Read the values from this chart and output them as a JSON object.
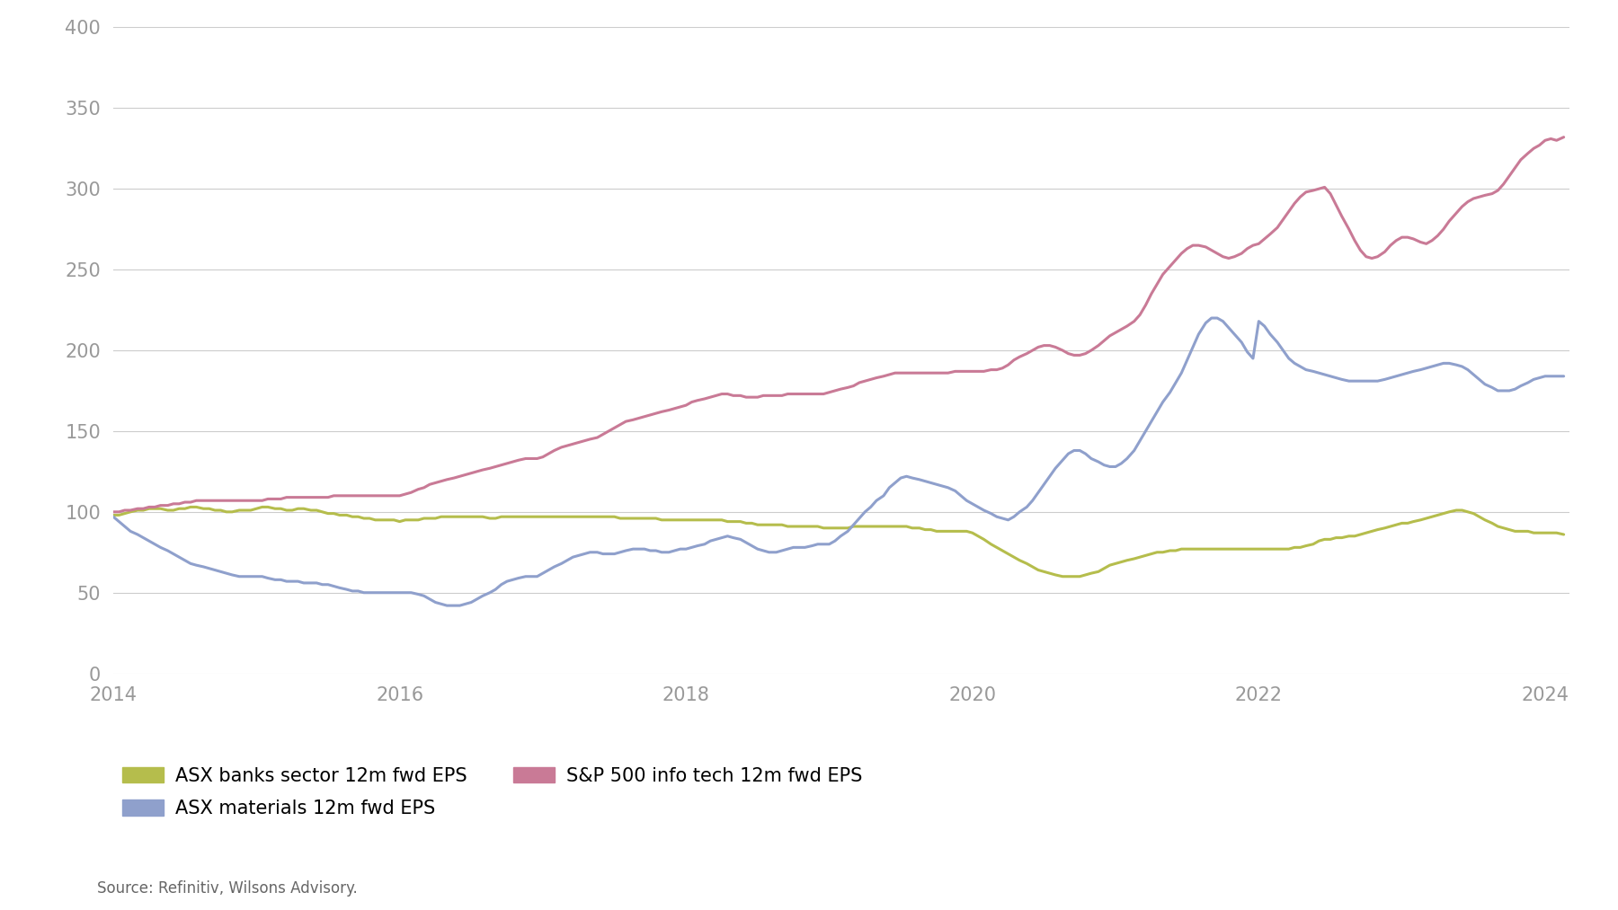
{
  "title": "",
  "source_text": "Source: Refinitiv, Wilsons Advisory.",
  "xlim": [
    2014.0,
    2024.17
  ],
  "ylim": [
    0,
    400
  ],
  "yticks": [
    0,
    50,
    100,
    150,
    200,
    250,
    300,
    350,
    400
  ],
  "xticks": [
    2014,
    2016,
    2018,
    2020,
    2022,
    2024
  ],
  "background_color": "#ffffff",
  "grid_color": "#cccccc",
  "legend_items": [
    {
      "label": "ASX banks sector 12m fwd EPS",
      "color": "#b5bd4c"
    },
    {
      "label": "ASX materials 12m fwd EPS",
      "color": "#8fa0cc"
    },
    {
      "label": "S&P 500 info tech 12m fwd EPS",
      "color": "#c97a96"
    }
  ],
  "banks_x": [
    2014.0,
    2014.04,
    2014.08,
    2014.12,
    2014.17,
    2014.21,
    2014.25,
    2014.29,
    2014.33,
    2014.38,
    2014.42,
    2014.46,
    2014.5,
    2014.54,
    2014.58,
    2014.63,
    2014.67,
    2014.71,
    2014.75,
    2014.79,
    2014.83,
    2014.88,
    2014.92,
    2014.96,
    2015.0,
    2015.04,
    2015.08,
    2015.13,
    2015.17,
    2015.21,
    2015.25,
    2015.29,
    2015.33,
    2015.38,
    2015.42,
    2015.46,
    2015.5,
    2015.54,
    2015.58,
    2015.63,
    2015.67,
    2015.71,
    2015.75,
    2015.79,
    2015.83,
    2015.88,
    2015.92,
    2015.96,
    2016.0,
    2016.04,
    2016.08,
    2016.13,
    2016.17,
    2016.21,
    2016.25,
    2016.29,
    2016.33,
    2016.38,
    2016.42,
    2016.46,
    2016.5,
    2016.54,
    2016.58,
    2016.63,
    2016.67,
    2016.71,
    2016.75,
    2016.79,
    2016.83,
    2016.88,
    2016.92,
    2016.96,
    2017.0,
    2017.04,
    2017.08,
    2017.13,
    2017.17,
    2017.21,
    2017.25,
    2017.29,
    2017.33,
    2017.38,
    2017.42,
    2017.46,
    2017.5,
    2017.54,
    2017.58,
    2017.63,
    2017.67,
    2017.71,
    2017.75,
    2017.79,
    2017.83,
    2017.88,
    2017.92,
    2017.96,
    2018.0,
    2018.04,
    2018.08,
    2018.13,
    2018.17,
    2018.21,
    2018.25,
    2018.29,
    2018.33,
    2018.38,
    2018.42,
    2018.46,
    2018.5,
    2018.54,
    2018.58,
    2018.63,
    2018.67,
    2018.71,
    2018.75,
    2018.79,
    2018.83,
    2018.88,
    2018.92,
    2018.96,
    2019.0,
    2019.04,
    2019.08,
    2019.13,
    2019.17,
    2019.21,
    2019.25,
    2019.29,
    2019.33,
    2019.38,
    2019.42,
    2019.46,
    2019.5,
    2019.54,
    2019.58,
    2019.63,
    2019.67,
    2019.71,
    2019.75,
    2019.79,
    2019.83,
    2019.88,
    2019.92,
    2019.96,
    2020.0,
    2020.04,
    2020.08,
    2020.13,
    2020.17,
    2020.21,
    2020.25,
    2020.29,
    2020.33,
    2020.38,
    2020.42,
    2020.46,
    2020.5,
    2020.54,
    2020.58,
    2020.63,
    2020.67,
    2020.71,
    2020.75,
    2020.79,
    2020.83,
    2020.88,
    2020.92,
    2020.96,
    2021.0,
    2021.04,
    2021.08,
    2021.13,
    2021.17,
    2021.21,
    2021.25,
    2021.29,
    2021.33,
    2021.38,
    2021.42,
    2021.46,
    2021.5,
    2021.54,
    2021.58,
    2021.63,
    2021.67,
    2021.71,
    2021.75,
    2021.79,
    2021.83,
    2021.88,
    2021.92,
    2021.96,
    2022.0,
    2022.04,
    2022.08,
    2022.13,
    2022.17,
    2022.21,
    2022.25,
    2022.29,
    2022.33,
    2022.38,
    2022.42,
    2022.46,
    2022.5,
    2022.54,
    2022.58,
    2022.63,
    2022.67,
    2022.71,
    2022.75,
    2022.79,
    2022.83,
    2022.88,
    2022.92,
    2022.96,
    2023.0,
    2023.04,
    2023.08,
    2023.13,
    2023.17,
    2023.21,
    2023.25,
    2023.29,
    2023.33,
    2023.38,
    2023.42,
    2023.46,
    2023.5,
    2023.54,
    2023.58,
    2023.63,
    2023.67,
    2023.71,
    2023.75,
    2023.79,
    2023.83,
    2023.88,
    2023.92,
    2023.96,
    2024.0,
    2024.04,
    2024.08,
    2024.13
  ],
  "banks_y": [
    98,
    98,
    99,
    100,
    101,
    101,
    102,
    102,
    102,
    101,
    101,
    102,
    102,
    103,
    103,
    102,
    102,
    101,
    101,
    100,
    100,
    101,
    101,
    101,
    102,
    103,
    103,
    102,
    102,
    101,
    101,
    102,
    102,
    101,
    101,
    100,
    99,
    99,
    98,
    98,
    97,
    97,
    96,
    96,
    95,
    95,
    95,
    95,
    94,
    95,
    95,
    95,
    96,
    96,
    96,
    97,
    97,
    97,
    97,
    97,
    97,
    97,
    97,
    96,
    96,
    97,
    97,
    97,
    97,
    97,
    97,
    97,
    97,
    97,
    97,
    97,
    97,
    97,
    97,
    97,
    97,
    97,
    97,
    97,
    97,
    96,
    96,
    96,
    96,
    96,
    96,
    96,
    95,
    95,
    95,
    95,
    95,
    95,
    95,
    95,
    95,
    95,
    95,
    94,
    94,
    94,
    93,
    93,
    92,
    92,
    92,
    92,
    92,
    91,
    91,
    91,
    91,
    91,
    91,
    90,
    90,
    90,
    90,
    90,
    91,
    91,
    91,
    91,
    91,
    91,
    91,
    91,
    91,
    91,
    90,
    90,
    89,
    89,
    88,
    88,
    88,
    88,
    88,
    88,
    87,
    85,
    83,
    80,
    78,
    76,
    74,
    72,
    70,
    68,
    66,
    64,
    63,
    62,
    61,
    60,
    60,
    60,
    60,
    61,
    62,
    63,
    65,
    67,
    68,
    69,
    70,
    71,
    72,
    73,
    74,
    75,
    75,
    76,
    76,
    77,
    77,
    77,
    77,
    77,
    77,
    77,
    77,
    77,
    77,
    77,
    77,
    77,
    77,
    77,
    77,
    77,
    77,
    77,
    78,
    78,
    79,
    80,
    82,
    83,
    83,
    84,
    84,
    85,
    85,
    86,
    87,
    88,
    89,
    90,
    91,
    92,
    93,
    93,
    94,
    95,
    96,
    97,
    98,
    99,
    100,
    101,
    101,
    100,
    99,
    97,
    95,
    93,
    91,
    90,
    89,
    88,
    88,
    88,
    87,
    87,
    87,
    87,
    87,
    86
  ],
  "materials_x": [
    2014.0,
    2014.04,
    2014.08,
    2014.12,
    2014.17,
    2014.21,
    2014.25,
    2014.29,
    2014.33,
    2014.38,
    2014.42,
    2014.46,
    2014.5,
    2014.54,
    2014.58,
    2014.63,
    2014.67,
    2014.71,
    2014.75,
    2014.79,
    2014.83,
    2014.88,
    2014.92,
    2014.96,
    2015.0,
    2015.04,
    2015.08,
    2015.13,
    2015.17,
    2015.21,
    2015.25,
    2015.29,
    2015.33,
    2015.38,
    2015.42,
    2015.46,
    2015.5,
    2015.54,
    2015.58,
    2015.63,
    2015.67,
    2015.71,
    2015.75,
    2015.79,
    2015.83,
    2015.88,
    2015.92,
    2015.96,
    2016.0,
    2016.04,
    2016.08,
    2016.13,
    2016.17,
    2016.21,
    2016.25,
    2016.29,
    2016.33,
    2016.38,
    2016.42,
    2016.46,
    2016.5,
    2016.54,
    2016.58,
    2016.63,
    2016.67,
    2016.71,
    2016.75,
    2016.79,
    2016.83,
    2016.88,
    2016.92,
    2016.96,
    2017.0,
    2017.04,
    2017.08,
    2017.13,
    2017.17,
    2017.21,
    2017.25,
    2017.29,
    2017.33,
    2017.38,
    2017.42,
    2017.46,
    2017.5,
    2017.54,
    2017.58,
    2017.63,
    2017.67,
    2017.71,
    2017.75,
    2017.79,
    2017.83,
    2017.88,
    2017.92,
    2017.96,
    2018.0,
    2018.04,
    2018.08,
    2018.13,
    2018.17,
    2018.21,
    2018.25,
    2018.29,
    2018.33,
    2018.38,
    2018.42,
    2018.46,
    2018.5,
    2018.54,
    2018.58,
    2018.63,
    2018.67,
    2018.71,
    2018.75,
    2018.79,
    2018.83,
    2018.88,
    2018.92,
    2018.96,
    2019.0,
    2019.04,
    2019.08,
    2019.13,
    2019.17,
    2019.21,
    2019.25,
    2019.29,
    2019.33,
    2019.38,
    2019.42,
    2019.46,
    2019.5,
    2019.54,
    2019.58,
    2019.63,
    2019.67,
    2019.71,
    2019.75,
    2019.79,
    2019.83,
    2019.88,
    2019.92,
    2019.96,
    2020.0,
    2020.04,
    2020.08,
    2020.13,
    2020.17,
    2020.21,
    2020.25,
    2020.29,
    2020.33,
    2020.38,
    2020.42,
    2020.46,
    2020.5,
    2020.54,
    2020.58,
    2020.63,
    2020.67,
    2020.71,
    2020.75,
    2020.79,
    2020.83,
    2020.88,
    2020.92,
    2020.96,
    2021.0,
    2021.04,
    2021.08,
    2021.13,
    2021.17,
    2021.21,
    2021.25,
    2021.29,
    2021.33,
    2021.38,
    2021.42,
    2021.46,
    2021.5,
    2021.54,
    2021.58,
    2021.63,
    2021.67,
    2021.71,
    2021.75,
    2021.79,
    2021.83,
    2021.88,
    2021.92,
    2021.96,
    2022.0,
    2022.04,
    2022.08,
    2022.13,
    2022.17,
    2022.21,
    2022.25,
    2022.29,
    2022.33,
    2022.38,
    2022.42,
    2022.46,
    2022.5,
    2022.54,
    2022.58,
    2022.63,
    2022.67,
    2022.71,
    2022.75,
    2022.79,
    2022.83,
    2022.88,
    2022.92,
    2022.96,
    2023.0,
    2023.04,
    2023.08,
    2023.13,
    2023.17,
    2023.21,
    2023.25,
    2023.29,
    2023.33,
    2023.38,
    2023.42,
    2023.46,
    2023.5,
    2023.54,
    2023.58,
    2023.63,
    2023.67,
    2023.71,
    2023.75,
    2023.79,
    2023.83,
    2023.88,
    2023.92,
    2023.96,
    2024.0,
    2024.04,
    2024.08,
    2024.13
  ],
  "materials_y": [
    97,
    94,
    91,
    88,
    86,
    84,
    82,
    80,
    78,
    76,
    74,
    72,
    70,
    68,
    67,
    66,
    65,
    64,
    63,
    62,
    61,
    60,
    60,
    60,
    60,
    60,
    59,
    58,
    58,
    57,
    57,
    57,
    56,
    56,
    56,
    55,
    55,
    54,
    53,
    52,
    51,
    51,
    50,
    50,
    50,
    50,
    50,
    50,
    50,
    50,
    50,
    49,
    48,
    46,
    44,
    43,
    42,
    42,
    42,
    43,
    44,
    46,
    48,
    50,
    52,
    55,
    57,
    58,
    59,
    60,
    60,
    60,
    62,
    64,
    66,
    68,
    70,
    72,
    73,
    74,
    75,
    75,
    74,
    74,
    74,
    75,
    76,
    77,
    77,
    77,
    76,
    76,
    75,
    75,
    76,
    77,
    77,
    78,
    79,
    80,
    82,
    83,
    84,
    85,
    84,
    83,
    81,
    79,
    77,
    76,
    75,
    75,
    76,
    77,
    78,
    78,
    78,
    79,
    80,
    80,
    80,
    82,
    85,
    88,
    92,
    96,
    100,
    103,
    107,
    110,
    115,
    118,
    121,
    122,
    121,
    120,
    119,
    118,
    117,
    116,
    115,
    113,
    110,
    107,
    105,
    103,
    101,
    99,
    97,
    96,
    95,
    97,
    100,
    103,
    107,
    112,
    117,
    122,
    127,
    132,
    136,
    138,
    138,
    136,
    133,
    131,
    129,
    128,
    128,
    130,
    133,
    138,
    144,
    150,
    156,
    162,
    168,
    174,
    180,
    186,
    194,
    202,
    210,
    217,
    220,
    220,
    218,
    214,
    210,
    205,
    199,
    195,
    218,
    215,
    210,
    205,
    200,
    195,
    192,
    190,
    188,
    187,
    186,
    185,
    184,
    183,
    182,
    181,
    181,
    181,
    181,
    181,
    181,
    182,
    183,
    184,
    185,
    186,
    187,
    188,
    189,
    190,
    191,
    192,
    192,
    191,
    190,
    188,
    185,
    182,
    179,
    177,
    175,
    175,
    175,
    176,
    178,
    180,
    182,
    183,
    184,
    184,
    184,
    184
  ],
  "sp500_x": [
    2014.0,
    2014.04,
    2014.08,
    2014.12,
    2014.17,
    2014.21,
    2014.25,
    2014.29,
    2014.33,
    2014.38,
    2014.42,
    2014.46,
    2014.5,
    2014.54,
    2014.58,
    2014.63,
    2014.67,
    2014.71,
    2014.75,
    2014.79,
    2014.83,
    2014.88,
    2014.92,
    2014.96,
    2015.0,
    2015.04,
    2015.08,
    2015.13,
    2015.17,
    2015.21,
    2015.25,
    2015.29,
    2015.33,
    2015.38,
    2015.42,
    2015.46,
    2015.5,
    2015.54,
    2015.58,
    2015.63,
    2015.67,
    2015.71,
    2015.75,
    2015.79,
    2015.83,
    2015.88,
    2015.92,
    2015.96,
    2016.0,
    2016.04,
    2016.08,
    2016.13,
    2016.17,
    2016.21,
    2016.25,
    2016.29,
    2016.33,
    2016.38,
    2016.42,
    2016.46,
    2016.5,
    2016.54,
    2016.58,
    2016.63,
    2016.67,
    2016.71,
    2016.75,
    2016.79,
    2016.83,
    2016.88,
    2016.92,
    2016.96,
    2017.0,
    2017.04,
    2017.08,
    2017.13,
    2017.17,
    2017.21,
    2017.25,
    2017.29,
    2017.33,
    2017.38,
    2017.42,
    2017.46,
    2017.5,
    2017.54,
    2017.58,
    2017.63,
    2017.67,
    2017.71,
    2017.75,
    2017.79,
    2017.83,
    2017.88,
    2017.92,
    2017.96,
    2018.0,
    2018.04,
    2018.08,
    2018.13,
    2018.17,
    2018.21,
    2018.25,
    2018.29,
    2018.33,
    2018.38,
    2018.42,
    2018.46,
    2018.5,
    2018.54,
    2018.58,
    2018.63,
    2018.67,
    2018.71,
    2018.75,
    2018.79,
    2018.83,
    2018.88,
    2018.92,
    2018.96,
    2019.0,
    2019.04,
    2019.08,
    2019.13,
    2019.17,
    2019.21,
    2019.25,
    2019.29,
    2019.33,
    2019.38,
    2019.42,
    2019.46,
    2019.5,
    2019.54,
    2019.58,
    2019.63,
    2019.67,
    2019.71,
    2019.75,
    2019.79,
    2019.83,
    2019.88,
    2019.92,
    2019.96,
    2020.0,
    2020.04,
    2020.08,
    2020.13,
    2020.17,
    2020.21,
    2020.25,
    2020.29,
    2020.33,
    2020.38,
    2020.42,
    2020.46,
    2020.5,
    2020.54,
    2020.58,
    2020.63,
    2020.67,
    2020.71,
    2020.75,
    2020.79,
    2020.83,
    2020.88,
    2020.92,
    2020.96,
    2021.0,
    2021.04,
    2021.08,
    2021.13,
    2021.17,
    2021.21,
    2021.25,
    2021.29,
    2021.33,
    2021.38,
    2021.42,
    2021.46,
    2021.5,
    2021.54,
    2021.58,
    2021.63,
    2021.67,
    2021.71,
    2021.75,
    2021.79,
    2021.83,
    2021.88,
    2021.92,
    2021.96,
    2022.0,
    2022.04,
    2022.08,
    2022.13,
    2022.17,
    2022.21,
    2022.25,
    2022.29,
    2022.33,
    2022.38,
    2022.42,
    2022.46,
    2022.5,
    2022.54,
    2022.58,
    2022.63,
    2022.67,
    2022.71,
    2022.75,
    2022.79,
    2022.83,
    2022.88,
    2022.92,
    2022.96,
    2023.0,
    2023.04,
    2023.08,
    2023.13,
    2023.17,
    2023.21,
    2023.25,
    2023.29,
    2023.33,
    2023.38,
    2023.42,
    2023.46,
    2023.5,
    2023.54,
    2023.58,
    2023.63,
    2023.67,
    2023.71,
    2023.75,
    2023.79,
    2023.83,
    2023.88,
    2023.92,
    2023.96,
    2024.0,
    2024.04,
    2024.08,
    2024.13
  ],
  "sp500_y": [
    100,
    100,
    101,
    101,
    102,
    102,
    103,
    103,
    104,
    104,
    105,
    105,
    106,
    106,
    107,
    107,
    107,
    107,
    107,
    107,
    107,
    107,
    107,
    107,
    107,
    107,
    108,
    108,
    108,
    109,
    109,
    109,
    109,
    109,
    109,
    109,
    109,
    110,
    110,
    110,
    110,
    110,
    110,
    110,
    110,
    110,
    110,
    110,
    110,
    111,
    112,
    114,
    115,
    117,
    118,
    119,
    120,
    121,
    122,
    123,
    124,
    125,
    126,
    127,
    128,
    129,
    130,
    131,
    132,
    133,
    133,
    133,
    134,
    136,
    138,
    140,
    141,
    142,
    143,
    144,
    145,
    146,
    148,
    150,
    152,
    154,
    156,
    157,
    158,
    159,
    160,
    161,
    162,
    163,
    164,
    165,
    166,
    168,
    169,
    170,
    171,
    172,
    173,
    173,
    172,
    172,
    171,
    171,
    171,
    172,
    172,
    172,
    172,
    173,
    173,
    173,
    173,
    173,
    173,
    173,
    174,
    175,
    176,
    177,
    178,
    180,
    181,
    182,
    183,
    184,
    185,
    186,
    186,
    186,
    186,
    186,
    186,
    186,
    186,
    186,
    186,
    187,
    187,
    187,
    187,
    187,
    187,
    188,
    188,
    189,
    191,
    194,
    196,
    198,
    200,
    202,
    203,
    203,
    202,
    200,
    198,
    197,
    197,
    198,
    200,
    203,
    206,
    209,
    211,
    213,
    215,
    218,
    222,
    228,
    235,
    241,
    247,
    252,
    256,
    260,
    263,
    265,
    265,
    264,
    262,
    260,
    258,
    257,
    258,
    260,
    263,
    265,
    266,
    269,
    272,
    276,
    281,
    286,
    291,
    295,
    298,
    299,
    300,
    301,
    297,
    290,
    283,
    275,
    268,
    262,
    258,
    257,
    258,
    261,
    265,
    268,
    270,
    270,
    269,
    267,
    266,
    268,
    271,
    275,
    280,
    285,
    289,
    292,
    294,
    295,
    296,
    297,
    299,
    303,
    308,
    313,
    318,
    322,
    325,
    327,
    330,
    331,
    330,
    332
  ]
}
